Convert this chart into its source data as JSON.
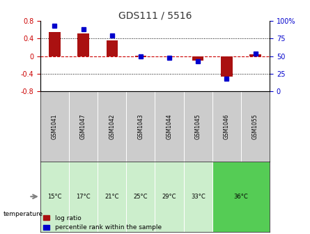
{
  "title": "GDS111 / 5516",
  "samples": [
    "GSM1041",
    "GSM1047",
    "GSM1042",
    "GSM1043",
    "GSM1044",
    "GSM1045",
    "GSM1046",
    "GSM1055"
  ],
  "temperatures": [
    "15°C",
    "17°C",
    "21°C",
    "25°C",
    "29°C",
    "33°C",
    "36°C",
    "36°C"
  ],
  "temp_groups": [
    {
      "label": "15°C",
      "color": "#d8f0d8",
      "span": 1
    },
    {
      "label": "17°C",
      "color": "#d8f0d8",
      "span": 1
    },
    {
      "label": "21°C",
      "color": "#d8f0d8",
      "span": 1
    },
    {
      "label": "25°C",
      "color": "#d8f0d8",
      "span": 1
    },
    {
      "label": "29°C",
      "color": "#d8f0d8",
      "span": 1
    },
    {
      "label": "33°C",
      "color": "#d8f0d8",
      "span": 1
    },
    {
      "label": "36°C",
      "color": "#66dd66",
      "span": 2
    }
  ],
  "log_ratio": [
    0.55,
    0.52,
    0.36,
    0.01,
    0.0,
    -0.1,
    -0.47,
    0.04
  ],
  "percentile_rank": [
    93,
    88,
    79,
    50,
    48,
    43,
    18,
    54
  ],
  "ylim_left": [
    -0.8,
    0.8
  ],
  "ylim_right": [
    0,
    100
  ],
  "bar_color": "#aa1111",
  "dot_color": "#0000cc",
  "zero_line_color": "#cc0000",
  "grid_color": "#000000",
  "bg_color": "#ffffff",
  "sample_bg": "#cccccc",
  "temp_bg_light": "#cceecc",
  "temp_bg_green": "#55cc55",
  "title_color": "#333333",
  "legend_log_ratio": "log ratio",
  "legend_percentile": "percentile rank within the sample",
  "temperature_label": "temperature"
}
